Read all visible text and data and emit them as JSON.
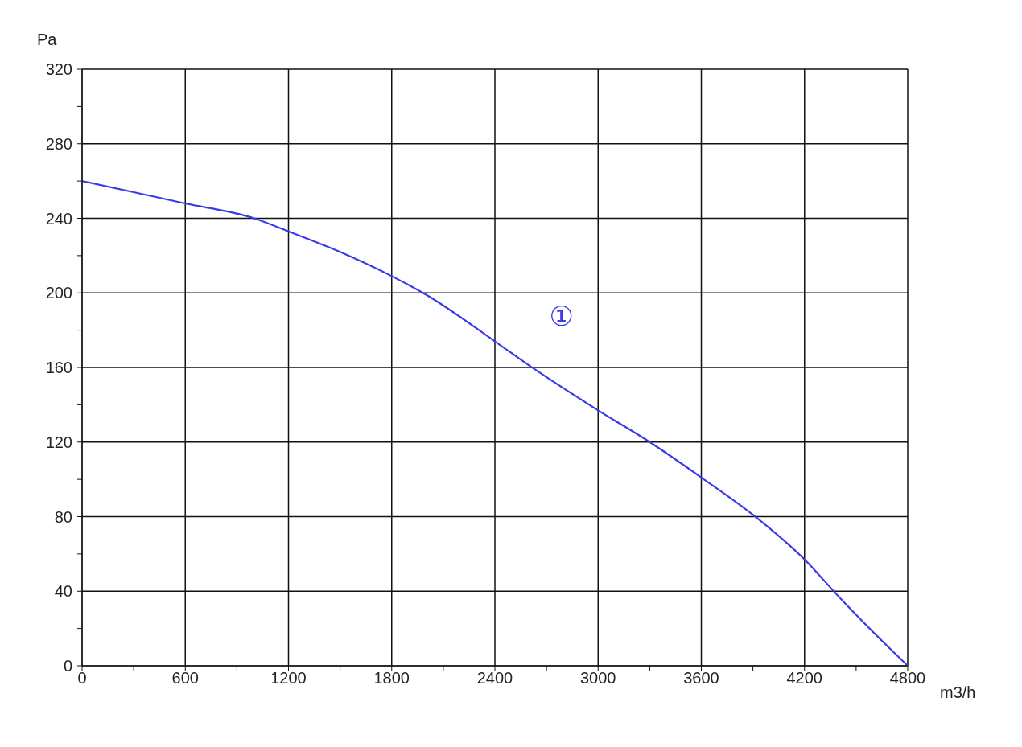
{
  "chart_data": {
    "type": "line",
    "xlabel": "m3/h",
    "ylabel": "Pa",
    "x": [
      0,
      600,
      1000,
      1200,
      1500,
      1800,
      2000,
      2400,
      2600,
      3000,
      3300,
      3600,
      3900,
      4200,
      4400,
      4600,
      4800
    ],
    "series": [
      {
        "name": "①",
        "color": "#3a3ae8",
        "values": [
          260,
          248,
          240,
          233,
          222,
          209,
          199,
          174,
          161,
          137,
          120,
          101,
          81,
          57,
          37,
          18,
          0
        ]
      }
    ],
    "xlim": [
      0,
      4800
    ],
    "ylim": [
      0,
      320
    ],
    "xticks": [
      0,
      {
        "value": 300,
        "label": null
      },
      600,
      {
        "value": 900,
        "label": null
      },
      1200,
      {
        "value": 1500,
        "label": null
      },
      1800,
      {
        "value": 2100,
        "label": null
      },
      2400,
      {
        "value": 2700,
        "label": null
      },
      3000,
      {
        "value": 3300,
        "label": null
      },
      3600,
      {
        "value": 3900,
        "label": null
      },
      4200,
      {
        "value": 4500,
        "label": null
      },
      4800
    ],
    "yticks": [
      0,
      {
        "value": 20,
        "label": null
      },
      40,
      {
        "value": 60,
        "label": null
      },
      80,
      {
        "value": 100,
        "label": null
      },
      120,
      {
        "value": 140,
        "label": null
      },
      160,
      {
        "value": 180,
        "label": null
      },
      200,
      {
        "value": 220,
        "label": null
      },
      240,
      {
        "value": 260,
        "label": null
      },
      280,
      {
        "value": 300,
        "label": null
      },
      320
    ],
    "grid": true,
    "marker": "none",
    "line_style": "solid"
  }
}
